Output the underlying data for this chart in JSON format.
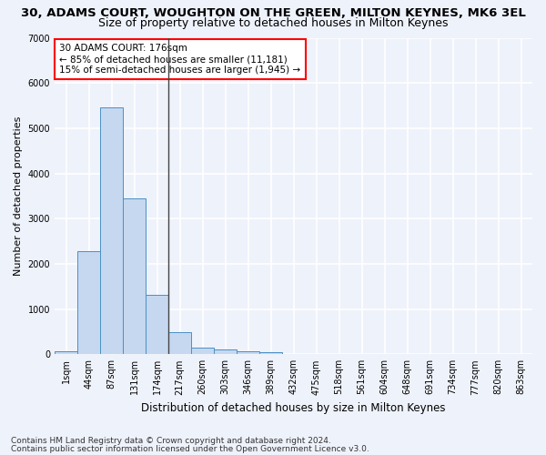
{
  "title": "30, ADAMS COURT, WOUGHTON ON THE GREEN, MILTON KEYNES, MK6 3EL",
  "subtitle": "Size of property relative to detached houses in Milton Keynes",
  "xlabel": "Distribution of detached houses by size in Milton Keynes",
  "ylabel": "Number of detached properties",
  "bar_color": "#c5d8f0",
  "bar_edge_color": "#4a90c4",
  "categories": [
    "1sqm",
    "44sqm",
    "87sqm",
    "131sqm",
    "174sqm",
    "217sqm",
    "260sqm",
    "303sqm",
    "346sqm",
    "389sqm",
    "432sqm",
    "475sqm",
    "518sqm",
    "561sqm",
    "604sqm",
    "648sqm",
    "691sqm",
    "734sqm",
    "777sqm",
    "820sqm",
    "863sqm"
  ],
  "values": [
    75,
    2280,
    5470,
    3450,
    1310,
    480,
    155,
    100,
    70,
    45,
    0,
    0,
    0,
    0,
    0,
    0,
    0,
    0,
    0,
    0,
    0
  ],
  "ylim": [
    0,
    7000
  ],
  "property_line_x": 4.5,
  "annotation_text": "30 ADAMS COURT: 176sqm\n← 85% of detached houses are smaller (11,181)\n15% of semi-detached houses are larger (1,945) →",
  "footnote1": "Contains HM Land Registry data © Crown copyright and database right 2024.",
  "footnote2": "Contains public sector information licensed under the Open Government Licence v3.0.",
  "background_color": "#eef2fb",
  "grid_color": "#ffffff",
  "title_fontsize": 9.5,
  "subtitle_fontsize": 9,
  "axis_label_fontsize": 8.5,
  "tick_fontsize": 7,
  "footnote_fontsize": 6.5,
  "annotation_fontsize": 7.5,
  "ylabel_fontsize": 8
}
